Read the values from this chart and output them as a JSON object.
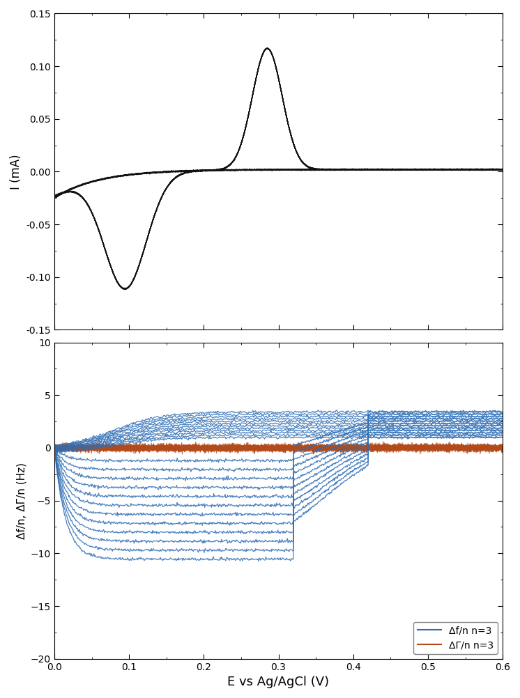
{
  "top_panel": {
    "ylabel": "I (mA)",
    "ylim": [
      -0.15,
      0.15
    ],
    "yticks": [
      -0.15,
      -0.1,
      -0.05,
      0.0,
      0.05,
      0.1,
      0.15
    ],
    "xlim": [
      0.0,
      0.6
    ],
    "xticks": [
      0.0,
      0.1,
      0.2,
      0.3,
      0.4,
      0.5,
      0.6
    ],
    "cv_color": "#111111",
    "num_cycles": 12
  },
  "bottom_panel": {
    "ylabel": "Δf/n, ΔΓ/n (Hz)",
    "ylim": [
      -20,
      10
    ],
    "yticks": [
      -20,
      -15,
      -10,
      -5,
      0,
      5,
      10
    ],
    "xlim": [
      0.0,
      0.6
    ],
    "xticks": [
      0.0,
      0.1,
      0.2,
      0.3,
      0.4,
      0.5,
      0.6
    ],
    "xlabel": "E vs Ag/AgCl (V)",
    "blue_color": "#2e6db4",
    "orange_color": "#b34a1a",
    "num_blue_cycles": 12,
    "legend_labels": [
      "Δf/n n=3",
      "ΔΓ/n n=3"
    ]
  },
  "figure_bg": "#ffffff"
}
